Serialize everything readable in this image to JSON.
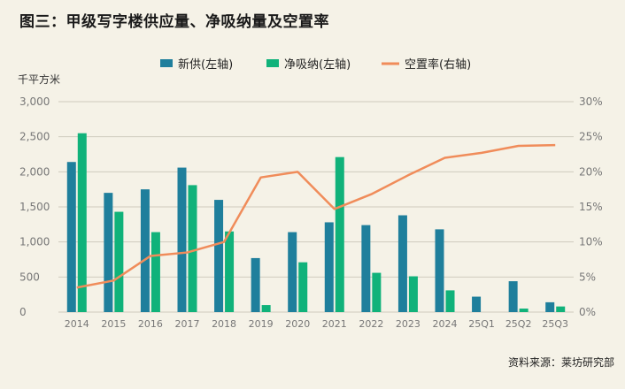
{
  "title": "图三：甲级写字楼供应量、净吸纳量及空置率",
  "source": "资料来源：莱坊研究部",
  "colors": {
    "supply": "#1f7f9c",
    "absorption": "#10b27a",
    "vacancy": "#f08c5a",
    "grid": "#cfcbbe",
    "axis_text": "#777777"
  },
  "chart_data": {
    "type": "bar+line",
    "left_axis_label": "千平方米",
    "categories": [
      "2014",
      "2015",
      "2016",
      "2017",
      "2018",
      "2019",
      "2020",
      "2021",
      "2022",
      "2023",
      "2024",
      "25Q1",
      "25Q2",
      "25Q3"
    ],
    "left_ylim": [
      0,
      3000
    ],
    "left_ticks": [
      "0",
      "500",
      "1,000",
      "1,500",
      "2,000",
      "2,500",
      "3,000"
    ],
    "left_tick_values": [
      0,
      500,
      1000,
      1500,
      2000,
      2500,
      3000
    ],
    "right_ylim": [
      0,
      30
    ],
    "right_ticks": [
      "0%",
      "5%",
      "10%",
      "15%",
      "20%",
      "25%",
      "30%"
    ],
    "right_tick_values": [
      0,
      5,
      10,
      15,
      20,
      25,
      30
    ],
    "series": [
      {
        "name": "新供(左轴)",
        "type": "bar",
        "axis": "left",
        "values": [
          2140,
          1700,
          1750,
          2060,
          1600,
          770,
          1140,
          1280,
          1240,
          1380,
          1180,
          220,
          440,
          140
        ]
      },
      {
        "name": "净吸纳(左轴)",
        "type": "bar",
        "axis": "left",
        "values": [
          2550,
          1430,
          1140,
          1810,
          1150,
          100,
          710,
          2210,
          560,
          510,
          310,
          0,
          50,
          80
        ]
      },
      {
        "name": "空置率(右轴)",
        "type": "line",
        "axis": "right",
        "values": [
          3.5,
          4.5,
          8.0,
          8.5,
          10.0,
          19.2,
          20.0,
          14.7,
          16.8,
          19.5,
          22.0,
          22.7,
          23.7,
          23.8
        ]
      }
    ]
  }
}
